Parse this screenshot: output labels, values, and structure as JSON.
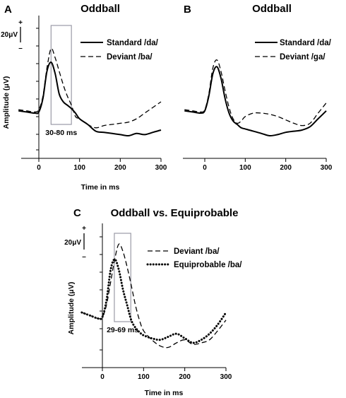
{
  "chart_data": [
    {
      "panel": "A",
      "type": "line",
      "title": "Oddball",
      "xlabel": "Time in ms",
      "ylabel": "Amplitude (μV)",
      "xlim": [
        -50,
        300
      ],
      "x_ticks": [
        "0",
        "100",
        "200",
        "300"
      ],
      "scale_bar": "20μV",
      "scale_plus": "+",
      "scale_minus": "–",
      "window": {
        "start": 30,
        "end": 80,
        "label": "30-80 ms"
      },
      "series": [
        {
          "name": "Standard /da/",
          "style": "solid",
          "x": [
            -50,
            -30,
            -10,
            0,
            10,
            20,
            30,
            40,
            50,
            60,
            70,
            80,
            90,
            100,
            120,
            140,
            160,
            180,
            200,
            220,
            240,
            260,
            280,
            300
          ],
          "y": [
            -3,
            -4,
            -5,
            -4,
            8,
            32,
            40,
            30,
            12,
            5,
            2,
            -1,
            -5,
            -10,
            -15,
            -21,
            -22,
            -23,
            -24,
            -25,
            -23,
            -24,
            -22,
            -20
          ]
        },
        {
          "name": "Deviant /ba/",
          "style": "dashed",
          "x": [
            -50,
            -30,
            -10,
            0,
            10,
            20,
            30,
            40,
            50,
            60,
            70,
            80,
            90,
            100,
            120,
            140,
            160,
            180,
            200,
            220,
            240,
            260,
            280,
            300
          ],
          "y": [
            -2,
            -3,
            -4,
            -2,
            10,
            35,
            52,
            44,
            32,
            20,
            10,
            2,
            -8,
            -10,
            -15,
            -18,
            -16,
            -15,
            -14,
            -13,
            -10,
            -5,
            0,
            5
          ]
        }
      ]
    },
    {
      "panel": "B",
      "type": "line",
      "title": "Oddball",
      "xlim": [
        -50,
        300
      ],
      "x_ticks": [
        "0",
        "100",
        "200",
        "300"
      ],
      "series": [
        {
          "name": "Standard /da/",
          "style": "solid",
          "x": [
            -50,
            -30,
            -10,
            0,
            10,
            20,
            30,
            40,
            50,
            60,
            70,
            80,
            90,
            100,
            120,
            140,
            160,
            180,
            200,
            220,
            240,
            260,
            280,
            300
          ],
          "y": [
            -3,
            -4,
            -5,
            -3,
            10,
            30,
            36,
            26,
            8,
            -5,
            -12,
            -15,
            -18,
            -19,
            -21,
            -23,
            -25,
            -24,
            -22,
            -21,
            -20,
            -17,
            -10,
            -3
          ]
        },
        {
          "name": "Deviant /ga/",
          "style": "dashed",
          "x": [
            -50,
            -30,
            -10,
            0,
            10,
            20,
            30,
            40,
            50,
            60,
            70,
            80,
            90,
            100,
            120,
            140,
            160,
            180,
            200,
            220,
            240,
            260,
            280,
            300
          ],
          "y": [
            -2,
            -3,
            -4,
            -2,
            12,
            35,
            42,
            32,
            15,
            0,
            -10,
            -14,
            -12,
            -8,
            -5,
            -5,
            -6,
            -8,
            -11,
            -14,
            -16,
            -14,
            -5,
            4
          ]
        }
      ]
    },
    {
      "panel": "C",
      "type": "line",
      "title": "Oddball vs. Equiprobable",
      "xlabel": "Time in ms",
      "ylabel": "Amplitude (μV)",
      "xlim": [
        -50,
        300
      ],
      "x_ticks": [
        "0",
        "100",
        "200",
        "300"
      ],
      "scale_bar": "20μV",
      "scale_plus": "+",
      "scale_minus": "–",
      "window": {
        "start": 29,
        "end": 69,
        "label": "29-69 ms"
      },
      "series": [
        {
          "name": "Deviant /ba/",
          "style": "dashed",
          "x": [
            -50,
            -30,
            -10,
            0,
            10,
            20,
            30,
            40,
            50,
            60,
            70,
            80,
            90,
            100,
            120,
            140,
            160,
            180,
            200,
            220,
            240,
            260,
            280,
            300
          ],
          "y": [
            0,
            -2,
            -4,
            -3,
            5,
            20,
            35,
            45,
            40,
            30,
            18,
            5,
            -5,
            -12,
            -18,
            -22,
            -23,
            -20,
            -18,
            -21,
            -20,
            -18,
            -12,
            -5
          ]
        },
        {
          "name": "Equiprobable /ba/",
          "style": "dotted",
          "x": [
            -50,
            -30,
            -10,
            0,
            10,
            20,
            30,
            40,
            50,
            60,
            70,
            80,
            90,
            100,
            120,
            140,
            160,
            180,
            200,
            220,
            240,
            260,
            280,
            300
          ],
          "y": [
            0,
            -2,
            -4,
            -3,
            8,
            28,
            35,
            28,
            15,
            5,
            -5,
            -10,
            -13,
            -15,
            -17,
            -18,
            -16,
            -14,
            -17,
            -20,
            -18,
            -14,
            -8,
            0
          ]
        }
      ]
    }
  ]
}
